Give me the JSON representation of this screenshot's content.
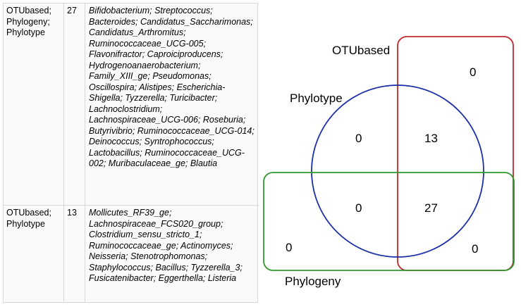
{
  "table": {
    "rows": [
      {
        "sets": "OTUbased; Phylogeny; Phylotype",
        "count": "27",
        "taxa": "Bifidobacterium; Streptococcus; Bacteroides; Candidatus_Saccharimonas; Candidatus_Arthromitus; Ruminococcaceae_UCG-005; Flavonifractor; Caproiciproducens; Hydrogenoanaerobacterium; Family_XIII_ge; Pseudomonas; Oscillospira; Alistipes; Escherichia-Shigella; Tyzzerella; Turicibacter; Lachnoclostridium; Lachnospiraceae_UCG-006; Roseburia; Butyrivibrio; Ruminococcaceae_UCG-014; Deinococcus; Syntrophococcus; Lactobacillus; Ruminococcaceae_UCG-002; Muribaculaceae_ge; Blautia"
      },
      {
        "sets": "OTUbased; Phylotype",
        "count": "13",
        "taxa": "Mollicutes_RF39_ge; Lachnospiraceae_FCS020_group; Clostridium_sensu_stricto_1; Ruminococcaceae_ge; Actinomyces; Neisseria; Stenotrophomonas; Staphylococcus; Bacillus; Tyzzerella_3; Fusicatenibacter; Eggerthella; Listeria"
      }
    ]
  },
  "venn": {
    "sets": [
      {
        "name": "OTUbased",
        "color": "#c0282c"
      },
      {
        "name": "Phylotype",
        "color": "#1c2fa8"
      },
      {
        "name": "Phylogeny",
        "color": "#2e9a2e"
      }
    ],
    "counts": {
      "otu_only": "0",
      "phylotype_only": "0",
      "otu_phylotype": "13",
      "phylotype_phylogeny": "0",
      "all_three": "27",
      "phylogeny_only": "0",
      "otu_phylogeny": "0"
    }
  }
}
